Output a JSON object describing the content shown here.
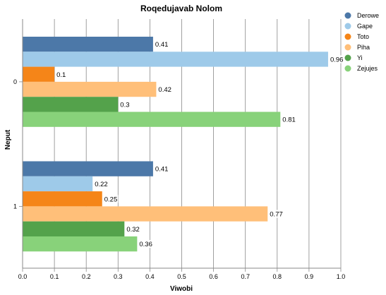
{
  "chart_data": {
    "type": "bar",
    "orientation": "horizontal",
    "title": "Roqedujavab Nolom",
    "xlabel": "Viwobi",
    "ylabel": "Neput",
    "categories": [
      "0",
      "1"
    ],
    "xlim": [
      0,
      1.0
    ],
    "x_ticks": [
      "0.0",
      "0.1",
      "0.2",
      "0.3",
      "0.4",
      "0.5",
      "0.6",
      "0.7",
      "0.8",
      "0.9",
      "1.0"
    ],
    "grid": true,
    "legend_position": "top-right",
    "series": [
      {
        "name": "Derowe",
        "color": "#4c78a8",
        "values": [
          0.41,
          0.41
        ],
        "labels": [
          "0.41",
          "0.41"
        ]
      },
      {
        "name": "Gape",
        "color": "#9ecae9",
        "values": [
          0.96,
          0.22
        ],
        "labels": [
          "0.96",
          "0.22"
        ]
      },
      {
        "name": "Toto",
        "color": "#f58518",
        "values": [
          0.1,
          0.25
        ],
        "labels": [
          "0.1",
          "0.25"
        ]
      },
      {
        "name": "Piha",
        "color": "#ffbf79",
        "values": [
          0.42,
          0.77
        ],
        "labels": [
          "0.42",
          "0.77"
        ]
      },
      {
        "name": "Yi",
        "color": "#54a24b",
        "values": [
          0.3,
          0.32
        ],
        "labels": [
          "0.3",
          "0.32"
        ]
      },
      {
        "name": "Zejujes",
        "color": "#88d27a",
        "values": [
          0.81,
          0.36
        ],
        "labels": [
          "0.81",
          "0.36"
        ]
      }
    ]
  }
}
